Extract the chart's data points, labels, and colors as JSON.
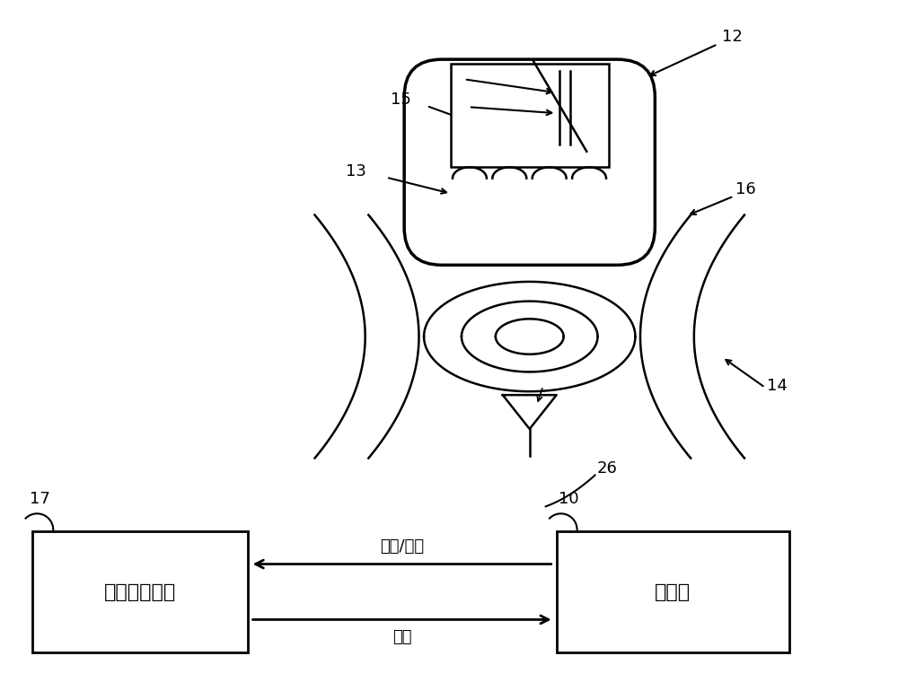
{
  "bg_color": "#ffffff",
  "line_color": "#000000",
  "label_12": "12",
  "label_13": "13",
  "label_14": "14",
  "label_15": "15",
  "label_16": "16",
  "label_17": "17",
  "label_10": "10",
  "label_26": "26",
  "label_waidi": "外部数据接口",
  "label_duqu": "读取器",
  "label_status": "状态/数据",
  "label_command": "命令"
}
